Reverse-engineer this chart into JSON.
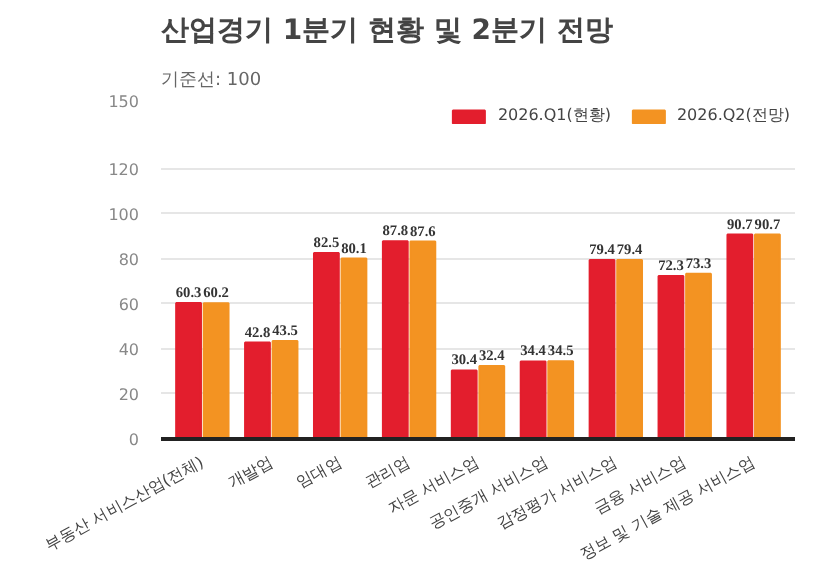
{
  "chart_data": {
    "type": "bar",
    "title": "산업경기 1분기 현황 및 2분기 전망",
    "subtitle": "기준선: 100",
    "categories": [
      "부동산 서비스산업(전체)",
      "개발업",
      "임대업",
      "관리업",
      "자문 서비스업",
      "공인중개 서비스업",
      "감정평가 서비스업",
      "금융 서비스업",
      "정보 및 기술 제공 서비스업"
    ],
    "series": [
      {
        "name": "2026.Q1(현황)",
        "color": "#e31e2d",
        "values": [
          60.3,
          42.8,
          82.5,
          87.8,
          30.4,
          34.4,
          79.4,
          72.3,
          90.7
        ]
      },
      {
        "name": "2026.Q2(전망)",
        "color": "#f39322",
        "values": [
          60.2,
          43.5,
          80.1,
          87.6,
          32.4,
          34.5,
          79.4,
          73.3,
          90.7
        ]
      }
    ],
    "ylim": [
      0,
      150
    ],
    "yticks": [
      0,
      20,
      40,
      60,
      80,
      100,
      120,
      150
    ],
    "grid": "y",
    "legend": "top right",
    "data_labels": true
  }
}
